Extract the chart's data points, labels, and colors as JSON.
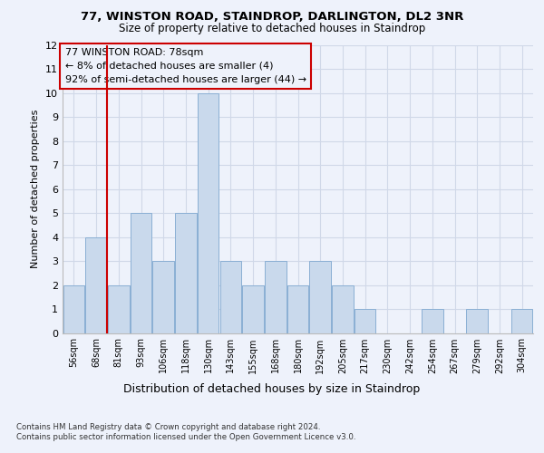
{
  "title1": "77, WINSTON ROAD, STAINDROP, DARLINGTON, DL2 3NR",
  "title2": "Size of property relative to detached houses in Staindrop",
  "xlabel": "Distribution of detached houses by size in Staindrop",
  "ylabel": "Number of detached properties",
  "bin_labels": [
    "56sqm",
    "68sqm",
    "81sqm",
    "93sqm",
    "106sqm",
    "118sqm",
    "130sqm",
    "143sqm",
    "155sqm",
    "168sqm",
    "180sqm",
    "192sqm",
    "205sqm",
    "217sqm",
    "230sqm",
    "242sqm",
    "254sqm",
    "267sqm",
    "279sqm",
    "292sqm",
    "304sqm"
  ],
  "bar_heights": [
    2,
    4,
    2,
    5,
    3,
    5,
    10,
    3,
    2,
    3,
    2,
    3,
    2,
    1,
    0,
    0,
    1,
    0,
    1,
    0,
    1
  ],
  "bar_color": "#c9d9ec",
  "bar_edge_color": "#8aafd4",
  "grid_color": "#d0d8e8",
  "annotation_box_text": "77 WINSTON ROAD: 78sqm\n← 8% of detached houses are smaller (4)\n92% of semi-detached houses are larger (44) →",
  "red_line_color": "#cc0000",
  "ylim": [
    0,
    12
  ],
  "yticks": [
    0,
    1,
    2,
    3,
    4,
    5,
    6,
    7,
    8,
    9,
    10,
    11,
    12
  ],
  "footer": "Contains HM Land Registry data © Crown copyright and database right 2024.\nContains public sector information licensed under the Open Government Licence v3.0.",
  "bg_color": "#eef2fb"
}
